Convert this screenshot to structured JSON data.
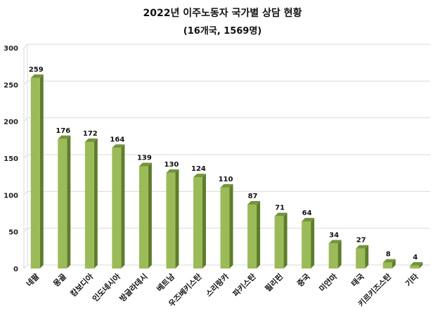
{
  "chart_data": {
    "type": "bar",
    "title": "2022년 이주노동자 국가별 상담 현황",
    "subtitle": "(16개국, 1569명)",
    "categories": [
      "네팔",
      "몽골",
      "캄보디아",
      "인도네시아",
      "방글라데시",
      "베트남",
      "우즈베키스탄",
      "스리랑카",
      "파키스탄",
      "필리핀",
      "중국",
      "미얀마",
      "태국",
      "키르키즈스탄",
      "기타"
    ],
    "values": [
      259,
      176,
      172,
      164,
      139,
      130,
      124,
      110,
      87,
      71,
      64,
      34,
      27,
      8,
      4
    ],
    "ylim": [
      0,
      300
    ],
    "yticks": [
      0,
      50,
      100,
      150,
      200,
      250,
      300
    ],
    "grid": true,
    "legend": "none",
    "colors": {
      "bar_front": "#9bbb59",
      "bar_side": "#5e7d2a",
      "bar_top": "#76933c",
      "grid": "#d9d9d9"
    }
  }
}
